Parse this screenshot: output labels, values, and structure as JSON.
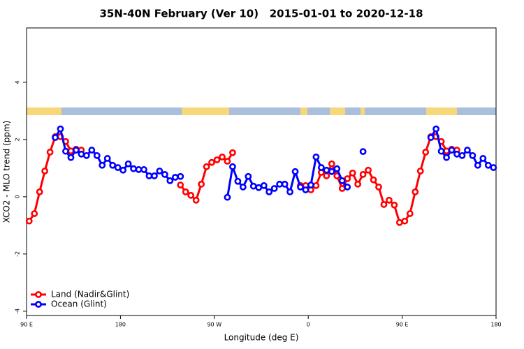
{
  "chart_data": {
    "type": "line",
    "title": "35N-40N February (Ver 10)   2015-01-01 to 2020-12-18",
    "xlabel": "Longitude (deg E)",
    "ylabel": "XCO2 - MLO trend (ppm)",
    "x": [
      92.5,
      97.5,
      102.5,
      107.5,
      112.5,
      117.5,
      122.5,
      127.5,
      132.5,
      137.5,
      142.5,
      147.5,
      152.5,
      157.5,
      162.5,
      167.5,
      172.5,
      177.5,
      182.5,
      187.5,
      192.5,
      197.5,
      202.5,
      207.5,
      212.5,
      217.5,
      222.5,
      227.5,
      232.5,
      237.5,
      242.5,
      247.5,
      252.5,
      257.5,
      262.5,
      267.5,
      272.5,
      277.5,
      282.5,
      287.5,
      292.5,
      297.5,
      302.5,
      307.5,
      312.5,
      317.5,
      322.5,
      327.5,
      332.5,
      337.5,
      342.5,
      347.5,
      352.5,
      357.5,
      362.5,
      367.5,
      372.5,
      377.5,
      382.5,
      387.5,
      392.5,
      397.5,
      402.5,
      407.5,
      412.5,
      417.5,
      422.5,
      427.5,
      432.5,
      437.5,
      442.5,
      447.5,
      452.5,
      457.5,
      462.5,
      467.5,
      472.5,
      477.5,
      482.5,
      487.5,
      492.5,
      497.5,
      502.5,
      507.5,
      512.5,
      517.5,
      522.5,
      527.5,
      532.5,
      537.5
    ],
    "series": [
      {
        "name": "Land (Nadir&Glint)",
        "color": "#ff0000",
        "values": [
          -0.85,
          -0.59,
          0.17,
          0.9,
          1.56,
          2.1,
          2.1,
          1.93,
          1.6,
          1.66,
          1.63,
          null,
          null,
          null,
          null,
          null,
          null,
          null,
          null,
          null,
          null,
          null,
          null,
          null,
          null,
          null,
          null,
          null,
          null,
          0.41,
          0.17,
          0.05,
          -0.12,
          0.44,
          1.05,
          1.2,
          1.29,
          1.39,
          1.24,
          1.54,
          null,
          null,
          null,
          null,
          null,
          null,
          null,
          null,
          null,
          null,
          null,
          null,
          0.39,
          0.39,
          0.24,
          0.39,
          0.85,
          0.73,
          1.15,
          0.73,
          0.29,
          0.63,
          0.83,
          0.44,
          0.78,
          0.93,
          0.59,
          0.34,
          -0.27,
          -0.12,
          -0.29,
          -0.9,
          -0.85,
          -0.59,
          0.17,
          0.9,
          1.56,
          2.1,
          2.1,
          1.93,
          1.6,
          1.66,
          1.63,
          null,
          null,
          null,
          null,
          null,
          null,
          null
        ]
      },
      {
        "name": "Ocean (Glint)",
        "color": "#0000ff",
        "values": [
          null,
          null,
          null,
          null,
          null,
          2.07,
          2.37,
          1.59,
          1.37,
          1.63,
          1.49,
          1.44,
          1.63,
          1.44,
          1.1,
          1.34,
          1.1,
          1.02,
          0.93,
          1.15,
          0.98,
          0.95,
          0.95,
          0.73,
          0.73,
          0.9,
          0.78,
          0.56,
          0.68,
          0.71,
          null,
          null,
          null,
          null,
          null,
          null,
          null,
          null,
          -0.02,
          1.05,
          0.54,
          0.34,
          0.71,
          0.37,
          0.32,
          0.39,
          0.17,
          0.29,
          0.44,
          0.44,
          0.17,
          0.88,
          0.34,
          0.24,
          0.41,
          1.39,
          1.02,
          0.93,
          0.88,
          0.98,
          0.56,
          0.34,
          null,
          null,
          1.58,
          null,
          null,
          null,
          null,
          null,
          null,
          null,
          null,
          null,
          null,
          null,
          null,
          2.07,
          2.37,
          1.59,
          1.37,
          1.63,
          1.49,
          1.44,
          1.63,
          1.44,
          1.1,
          1.34,
          1.1,
          1.02
        ]
      }
    ],
    "xlim": [
      90,
      540
    ],
    "xticks": [
      {
        "value": 90,
        "label": "90 E"
      },
      180,
      {
        "value": 270,
        "label": "90 W"
      },
      {
        "value": 360,
        "label": "0"
      },
      {
        "value": 450,
        "label": "90 E"
      },
      {
        "value": 540,
        "label": "180"
      }
    ],
    "ylim": [
      -4.15,
      5.9
    ],
    "yticks": [
      -4,
      -2,
      0,
      2,
      4
    ],
    "legend": "bottom-left"
  }
}
